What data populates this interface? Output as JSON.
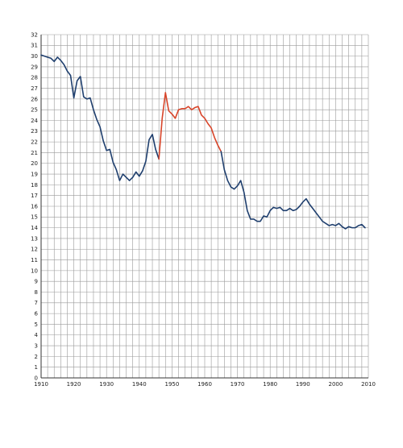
{
  "chart_data": {
    "type": "line",
    "title": "",
    "xlabel": "",
    "ylabel": "",
    "xlim": [
      1910,
      2010
    ],
    "ylim": [
      0,
      32
    ],
    "x_ticks": [
      1910,
      1920,
      1930,
      1940,
      1950,
      1960,
      1970,
      1980,
      1990,
      2000,
      2010
    ],
    "y_ticks": [
      0,
      1,
      2,
      3,
      4,
      5,
      6,
      7,
      8,
      9,
      10,
      11,
      12,
      13,
      14,
      15,
      16,
      17,
      18,
      19,
      20,
      21,
      22,
      23,
      24,
      25,
      26,
      27,
      28,
      29,
      30,
      31,
      32
    ],
    "grid": true,
    "legend": "none",
    "series": [
      {
        "color": "#1f3f6e",
        "x": [
          1910,
          1911,
          1912,
          1913,
          1914,
          1915,
          1916,
          1917,
          1918,
          1919,
          1920,
          1921,
          1922,
          1923,
          1924,
          1925,
          1926,
          1927,
          1928,
          1929,
          1930,
          1931,
          1932,
          1933,
          1934,
          1935,
          1936,
          1937,
          1938,
          1939,
          1940,
          1941,
          1942,
          1943,
          1944,
          1945,
          1946
        ],
        "values": [
          30.1,
          30.0,
          29.9,
          29.8,
          29.5,
          29.9,
          29.6,
          29.2,
          28.6,
          28.2,
          26.1,
          27.7,
          28.1,
          26.2,
          26.0,
          26.1,
          25.0,
          24.1,
          23.4,
          22.1,
          21.2,
          21.3,
          20.1,
          19.4,
          18.4,
          19.0,
          18.7,
          18.4,
          18.7,
          19.2,
          18.8,
          19.3,
          20.2,
          22.2,
          22.7,
          21.3,
          20.4
        ]
      },
      {
        "color": "#d8452a",
        "x": [
          1946,
          1947,
          1948,
          1949,
          1950,
          1951,
          1952,
          1953,
          1954,
          1955,
          1956,
          1957,
          1958,
          1959,
          1960,
          1961,
          1962,
          1963,
          1964,
          1965
        ],
        "values": [
          20.4,
          24.2,
          26.6,
          24.9,
          24.6,
          24.2,
          25.0,
          25.1,
          25.1,
          25.3,
          25.0,
          25.2,
          25.3,
          24.5,
          24.2,
          23.7,
          23.3,
          22.4,
          21.7,
          21.1
        ]
      },
      {
        "color": "#1f3f6e",
        "x": [
          1965,
          1966,
          1967,
          1968,
          1969,
          1970,
          1971,
          1972,
          1973,
          1974,
          1975,
          1976,
          1977,
          1978,
          1979,
          1980,
          1981,
          1982,
          1983,
          1984,
          1985,
          1986,
          1987,
          1988,
          1989,
          1990,
          1991,
          1992,
          1993,
          1994,
          1995,
          1996,
          1997,
          1998,
          1999,
          2000,
          2001,
          2002,
          2003,
          2004,
          2005,
          2006,
          2007,
          2008,
          2009
        ],
        "values": [
          21.1,
          19.4,
          18.4,
          17.8,
          17.6,
          17.9,
          18.4,
          17.3,
          15.6,
          14.8,
          14.8,
          14.6,
          14.6,
          15.1,
          15.0,
          15.6,
          15.9,
          15.8,
          15.9,
          15.6,
          15.6,
          15.8,
          15.6,
          15.7,
          16.0,
          16.4,
          16.7,
          16.2,
          15.8,
          15.4,
          15.0,
          14.6,
          14.4,
          14.2,
          14.3,
          14.2,
          14.4,
          14.1,
          13.9,
          14.1,
          14.0,
          14.0,
          14.2,
          14.3,
          14.0
        ]
      }
    ]
  }
}
